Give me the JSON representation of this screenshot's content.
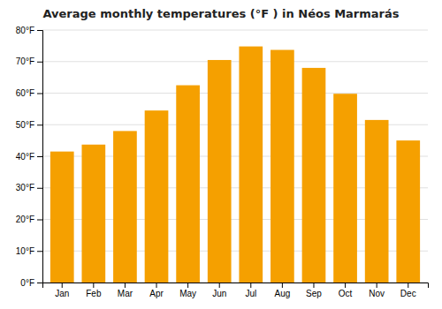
{
  "chart_data": {
    "type": "bar",
    "title": "Average monthly temperatures (°F ) in Néos Marmarás",
    "categories": [
      "Jan",
      "Feb",
      "Mar",
      "Apr",
      "May",
      "Jun",
      "Jul",
      "Aug",
      "Sep",
      "Oct",
      "Nov",
      "Dec"
    ],
    "values": [
      41.5,
      43.7,
      48.0,
      54.5,
      62.5,
      70.5,
      74.8,
      73.7,
      68.0,
      59.8,
      51.5,
      45.0
    ],
    "color": "#F5A000",
    "ylim": [
      0,
      80
    ],
    "yticks": [
      {
        "value": 0,
        "label": "0°F"
      },
      {
        "value": 10,
        "label": "10°F"
      },
      {
        "value": 20,
        "label": "20°F"
      },
      {
        "value": 30,
        "label": "30°F"
      },
      {
        "value": 40,
        "label": "40°F"
      },
      {
        "value": 50,
        "label": "50°F"
      },
      {
        "value": 60,
        "label": "60°F"
      },
      {
        "value": 70,
        "label": "70°F"
      },
      {
        "value": 80,
        "label": "80°F"
      }
    ],
    "grid": true
  }
}
